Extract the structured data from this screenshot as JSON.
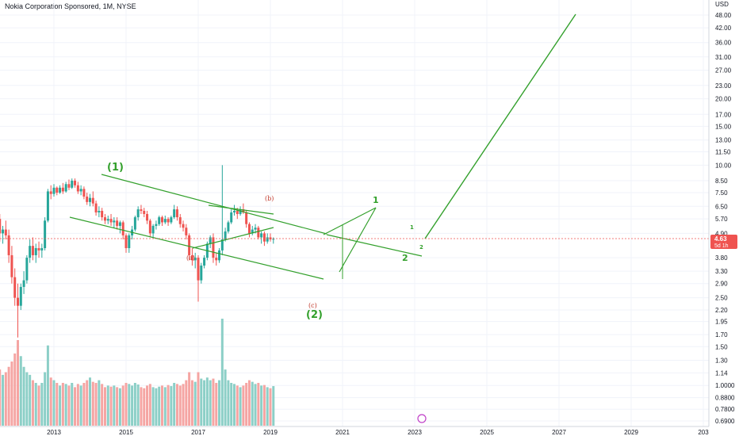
{
  "title": "Nokia Corporation Sponsored, 1M, NYSE",
  "currency": "USD",
  "price_label": {
    "price": "4.63",
    "countdown": "5d 1h"
  },
  "colors": {
    "up": "#26a69a",
    "down": "#ef5350",
    "vol_up": "#8ccfc7",
    "vol_down": "#f5a5a3",
    "wave": "#33a02c",
    "subwave": "#c0392b",
    "price_tag": "#ef5350"
  },
  "chart_data": {
    "type": "candlestick",
    "scale": "log",
    "grid": true,
    "y_ticks": [
      "48.00",
      "42.00",
      "36.00",
      "31.00",
      "27.00",
      "23.00",
      "20.00",
      "17.00",
      "15.00",
      "13.00",
      "11.50",
      "10.00",
      "8.50",
      "7.50",
      "6.50",
      "5.70",
      "4.90",
      "3.80",
      "3.30",
      "2.90",
      "2.50",
      "2.20",
      "1.95",
      "1.70",
      "1.50",
      "1.30",
      "1.14",
      "1.0000",
      "0.8800",
      "0.7800",
      "0.6900"
    ],
    "x_ticks": [
      "2013",
      "2015",
      "2017",
      "2019",
      "2021",
      "2023",
      "2025",
      "2027",
      "2029",
      "203"
    ],
    "candles_ohlc": [
      [
        6.3,
        7.2,
        6.0,
        6.9
      ],
      [
        6.9,
        7.1,
        6.1,
        6.3
      ],
      [
        6.3,
        6.8,
        5.6,
        5.8
      ],
      [
        5.8,
        6.4,
        5.2,
        6.1
      ],
      [
        6.1,
        6.5,
        5.5,
        5.7
      ],
      [
        5.7,
        6.0,
        4.5,
        4.9
      ],
      [
        4.9,
        5.3,
        4.4,
        5.1
      ],
      [
        5.1,
        5.6,
        4.6,
        4.8
      ],
      [
        4.8,
        5.1,
        3.6,
        3.9
      ],
      [
        3.9,
        4.3,
        2.9,
        3.1
      ],
      [
        3.1,
        3.4,
        2.3,
        2.5
      ],
      [
        2.5,
        2.9,
        1.65,
        2.3
      ],
      [
        2.3,
        2.9,
        2.2,
        2.8
      ],
      [
        2.8,
        3.3,
        2.6,
        3.0
      ],
      [
        3.0,
        3.9,
        2.9,
        3.8
      ],
      [
        3.8,
        4.6,
        3.6,
        4.3
      ],
      [
        4.3,
        4.7,
        3.7,
        3.9
      ],
      [
        3.9,
        4.4,
        3.6,
        4.2
      ],
      [
        4.2,
        4.5,
        3.8,
        4.1
      ],
      [
        4.1,
        4.4,
        3.8,
        4.2
      ],
      [
        4.2,
        5.8,
        4.1,
        5.6
      ],
      [
        5.6,
        7.8,
        5.5,
        7.6
      ],
      [
        7.6,
        8.1,
        7.0,
        7.4
      ],
      [
        7.4,
        8.2,
        7.2,
        7.9
      ],
      [
        7.9,
        8.0,
        7.3,
        7.5
      ],
      [
        7.5,
        8.1,
        7.4,
        7.9
      ],
      [
        7.9,
        8.3,
        7.4,
        7.6
      ],
      [
        7.6,
        8.4,
        7.5,
        8.2
      ],
      [
        8.2,
        8.6,
        7.7,
        7.9
      ],
      [
        7.9,
        8.7,
        7.8,
        8.5
      ],
      [
        8.5,
        8.7,
        7.9,
        8.1
      ],
      [
        8.1,
        8.4,
        7.4,
        7.6
      ],
      [
        7.6,
        8.1,
        7.3,
        7.8
      ],
      [
        7.8,
        8.0,
        7.0,
        7.2
      ],
      [
        7.2,
        7.5,
        6.6,
        6.8
      ],
      [
        6.8,
        7.4,
        6.5,
        7.1
      ],
      [
        7.1,
        7.6,
        6.5,
        6.7
      ],
      [
        6.7,
        6.9,
        5.9,
        6.1
      ],
      [
        6.1,
        6.5,
        5.8,
        6.2
      ],
      [
        6.2,
        6.4,
        5.6,
        5.8
      ],
      [
        5.8,
        6.0,
        5.4,
        5.6
      ],
      [
        5.6,
        5.9,
        5.4,
        5.7
      ],
      [
        5.7,
        6.0,
        5.3,
        5.5
      ],
      [
        5.5,
        5.8,
        5.2,
        5.6
      ],
      [
        5.6,
        5.8,
        5.1,
        5.3
      ],
      [
        5.3,
        5.6,
        4.9,
        5.5
      ],
      [
        5.5,
        5.6,
        4.6,
        4.8
      ],
      [
        4.8,
        4.9,
        4.0,
        4.2
      ],
      [
        4.2,
        4.9,
        4.0,
        4.8
      ],
      [
        4.8,
        5.3,
        4.6,
        5.1
      ],
      [
        5.1,
        5.9,
        5.0,
        5.8
      ],
      [
        5.8,
        6.5,
        5.6,
        6.3
      ],
      [
        6.3,
        6.6,
        6.0,
        6.2
      ],
      [
        6.2,
        6.4,
        5.8,
        6.0
      ],
      [
        6.0,
        6.2,
        5.4,
        5.6
      ],
      [
        5.6,
        5.7,
        4.7,
        4.9
      ],
      [
        4.9,
        5.4,
        4.7,
        5.3
      ],
      [
        5.3,
        5.6,
        5.1,
        5.4
      ],
      [
        5.4,
        5.9,
        5.3,
        5.8
      ],
      [
        5.8,
        5.9,
        5.3,
        5.5
      ],
      [
        5.5,
        5.9,
        5.4,
        5.7
      ],
      [
        5.7,
        5.8,
        5.3,
        5.5
      ],
      [
        5.5,
        5.9,
        5.4,
        5.8
      ],
      [
        5.8,
        6.6,
        5.7,
        6.3
      ],
      [
        6.3,
        6.5,
        5.6,
        5.8
      ],
      [
        5.8,
        6.0,
        5.2,
        5.4
      ],
      [
        5.4,
        5.6,
        5.0,
        5.2
      ],
      [
        5.2,
        5.4,
        4.6,
        4.8
      ],
      [
        4.8,
        4.9,
        3.7,
        3.9
      ],
      [
        3.9,
        4.2,
        3.5,
        3.7
      ],
      [
        3.7,
        4.0,
        3.4,
        3.8
      ],
      [
        3.8,
        3.9,
        2.4,
        3.0
      ],
      [
        3.0,
        3.6,
        2.9,
        3.5
      ],
      [
        3.5,
        3.9,
        3.4,
        3.8
      ],
      [
        3.8,
        4.5,
        3.7,
        4.4
      ],
      [
        4.4,
        4.8,
        4.2,
        4.7
      ],
      [
        4.7,
        4.9,
        3.6,
        3.8
      ],
      [
        3.8,
        4.0,
        3.5,
        3.7
      ],
      [
        3.7,
        4.2,
        3.6,
        4.1
      ],
      [
        4.1,
        10.0,
        3.9,
        4.6
      ],
      [
        4.6,
        5.2,
        4.5,
        5.0
      ],
      [
        5.0,
        5.6,
        4.9,
        5.5
      ],
      [
        5.5,
        6.3,
        5.4,
        6.1
      ],
      [
        6.1,
        6.6,
        5.9,
        6.2
      ],
      [
        6.2,
        6.4,
        5.7,
        6.0
      ],
      [
        6.0,
        6.5,
        5.9,
        6.3
      ],
      [
        6.3,
        6.7,
        6.0,
        6.1
      ],
      [
        6.1,
        6.2,
        5.2,
        5.4
      ],
      [
        5.4,
        5.5,
        4.7,
        4.9
      ],
      [
        4.9,
        5.3,
        4.8,
        5.1
      ],
      [
        5.1,
        5.4,
        4.9,
        5.2
      ],
      [
        5.2,
        5.3,
        4.6,
        4.7
      ],
      [
        4.7,
        5.0,
        4.4,
        4.9
      ],
      [
        4.9,
        5.0,
        4.3,
        4.5
      ],
      [
        4.5,
        4.9,
        4.4,
        4.7
      ],
      [
        4.7,
        4.9,
        4.5,
        4.6
      ],
      [
        4.6,
        4.7,
        4.4,
        4.63
      ]
    ],
    "volume": [
      0.95,
      0.9,
      0.8,
      0.85,
      0.9,
      1.05,
      0.95,
      1.0,
      1.1,
      1.2,
      1.35,
      1.6,
      1.3,
      1.1,
      1.0,
      0.95,
      0.85,
      0.8,
      0.75,
      0.8,
      1.0,
      1.5,
      0.9,
      0.85,
      0.8,
      0.75,
      0.8,
      0.78,
      0.75,
      0.8,
      0.72,
      0.78,
      0.75,
      0.8,
      0.85,
      0.9,
      0.82,
      0.8,
      0.85,
      0.78,
      0.72,
      0.75,
      0.73,
      0.75,
      0.72,
      0.7,
      0.75,
      0.8,
      0.78,
      0.75,
      0.8,
      0.77,
      0.72,
      0.7,
      0.75,
      0.78,
      0.72,
      0.7,
      0.73,
      0.75,
      0.72,
      0.76,
      0.74,
      0.8,
      0.78,
      0.75,
      0.78,
      0.85,
      1.0,
      0.85,
      0.82,
      1.0,
      0.88,
      0.85,
      0.9,
      0.85,
      0.88,
      0.8,
      0.85,
      2.0,
      1.05,
      0.85,
      0.8,
      0.78,
      0.75,
      0.72,
      0.75,
      0.8,
      0.85,
      0.82,
      0.78,
      0.8,
      0.75,
      0.76,
      0.72,
      0.7,
      0.74
    ]
  },
  "wave_labels": {
    "w1": "(1)",
    "w2": "(2)",
    "a": "(a)",
    "b": "(b)",
    "c": "(c)",
    "i": "1",
    "ii": "2",
    "small_i": "1",
    "small_ii": "2"
  }
}
